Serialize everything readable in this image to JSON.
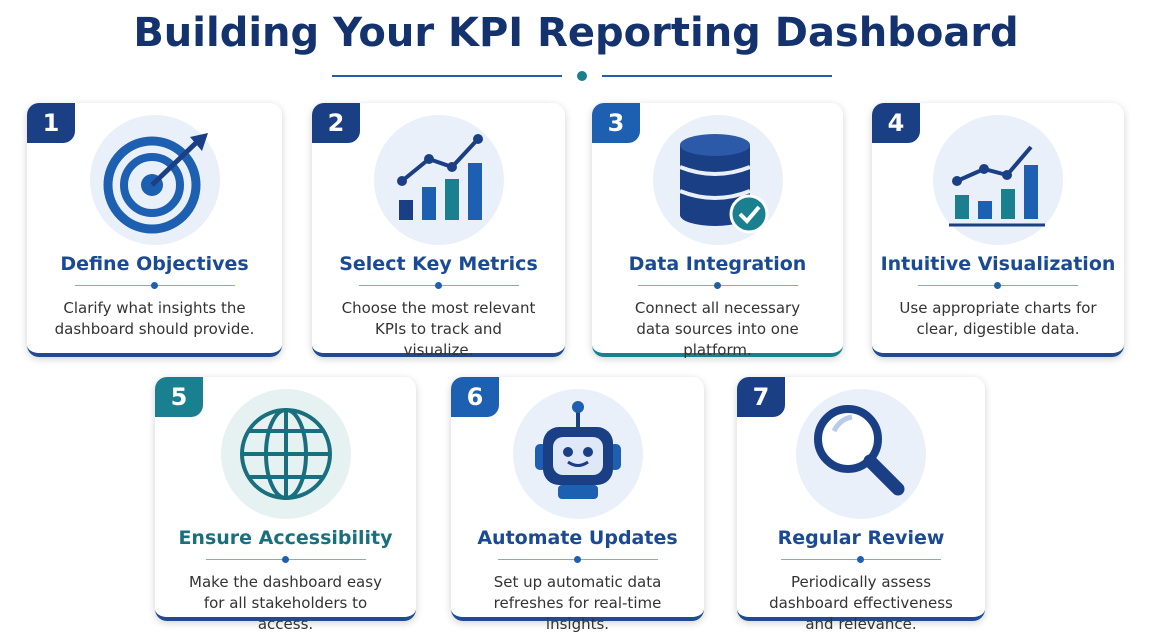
{
  "header": {
    "title": "Building Your KPI Reporting Dashboard"
  },
  "steps": [
    {
      "number": "1",
      "title": "Define Objectives",
      "description": "Clarify what insights the dashboard should provide."
    },
    {
      "number": "2",
      "title": "Select Key Metrics",
      "description": "Choose the most relevant KPIs to track and visualize."
    },
    {
      "number": "3",
      "title": "Data Integration",
      "description": "Connect all necessary data sources into one platform."
    },
    {
      "number": "4",
      "title": "Intuitive Visualization",
      "description": "Use appropriate charts for clear, digestible data."
    },
    {
      "number": "5",
      "title": "Ensure Accessibility",
      "description": "Make the dashboard easy for all stakeholders to access."
    },
    {
      "number": "6",
      "title": "Automate Updates",
      "description": "Set up automatic data refreshes for real-time insights."
    },
    {
      "number": "7",
      "title": "Regular Review",
      "description": "Periodically assess dashboard effectiveness and relevance."
    }
  ]
}
